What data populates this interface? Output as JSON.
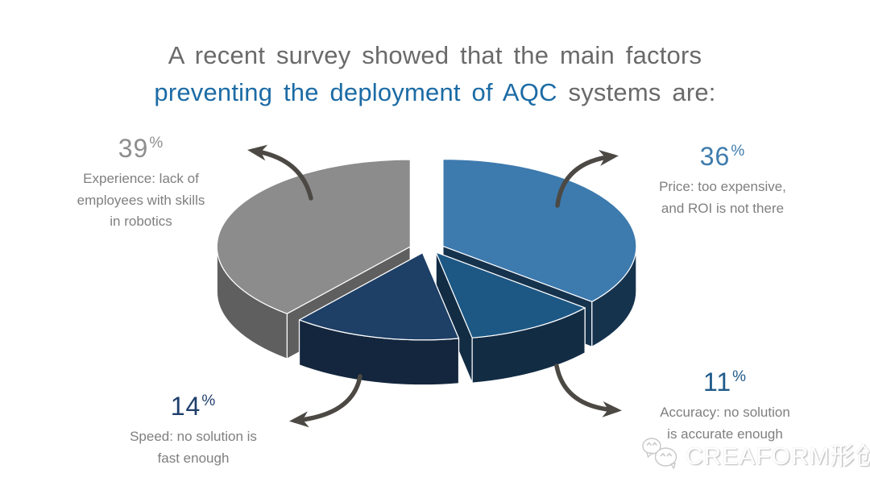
{
  "title": {
    "line1": "A recent survey showed that the main factors",
    "line2_highlight": "preventing the deployment of AQC",
    "line2_rest": " systems are:",
    "gray_color": "#6a6a6a",
    "highlight_color": "#1c6ba5"
  },
  "chart_data": {
    "type": "pie",
    "title": "Main factors preventing the deployment of AQC systems",
    "unit": "percent",
    "percent_sign": "%",
    "effect_3d": true,
    "exploded": true,
    "direction": "clockwise",
    "start_angle_deg": 0,
    "slices": [
      {
        "id": "price",
        "value": 36,
        "label": "Price: too expensive, and ROI is not there",
        "lines": [
          "Price: too expensive,",
          "and ROI is not there"
        ],
        "color": "#3d7aae",
        "side_color": "#16334e",
        "text_color": "#3f7cad"
      },
      {
        "id": "accuracy",
        "value": 11,
        "label": "Accuracy: no solution is accurate enough",
        "lines": [
          "Accuracy: no solution",
          "is accurate enough"
        ],
        "color": "#1d5885",
        "side_color": "#122c44",
        "text_color": "#1e5a8a"
      },
      {
        "id": "speed",
        "value": 14,
        "label": "Speed: no solution is fast enough",
        "lines": [
          "Speed: no solution is",
          "fast enough"
        ],
        "color": "#1e3f66",
        "side_color": "#13263d",
        "text_color": "#1f3e6b"
      },
      {
        "id": "experience",
        "value": 39,
        "label": "Experience: lack of employees with skills in robotics",
        "lines": [
          "Experience: lack of",
          "employees with skills",
          "in robotics"
        ],
        "color": "#8c8c8c",
        "side_color": "#5f5f5f",
        "text_color": "#8e8e8e"
      }
    ],
    "caption_text_color": "#7f7f7f",
    "arrow_color": "#4c4944",
    "legend_position": "around"
  },
  "watermark": {
    "text": "CREAFORM形创"
  }
}
